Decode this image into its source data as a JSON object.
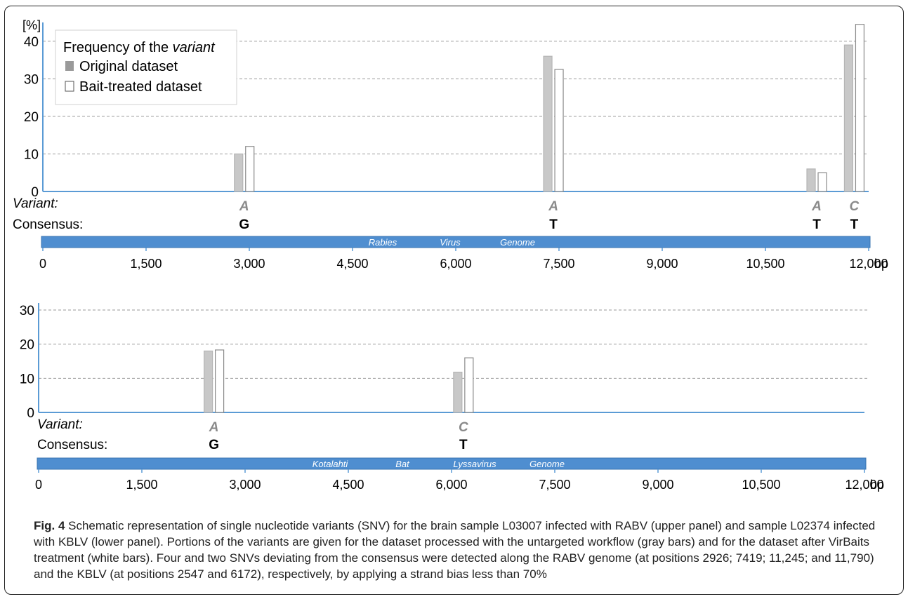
{
  "figure": {
    "caption_label": "Fig. 4",
    "caption_text": "Schematic representation of single nucleotide variants (SNV) for the brain sample L03007 infected with RABV (upper panel) and sample L02374 infected with KBLV (lower panel). Portions of the variants are given for the dataset processed with the untargeted workflow (gray bars) and for the dataset after VirBaits treatment (white bars). Four and two SNVs deviating from the consensus were detected along the RABV genome (at positions 2926; 7419; 11,245; and 11,790) and the KBLV (at positions 2547 and 6172), respectively, by applying a strand bias less than 70%"
  },
  "colors": {
    "original": "#c8c8c8",
    "bait": "#ffffff",
    "genome_bar": "#4f8ed0",
    "axis": "#5b9bd5",
    "grid": "#9a9a9a"
  },
  "chart_data": [
    {
      "type": "bar",
      "panel": "upper",
      "y_unit_label": "[%]",
      "ylim": [
        0,
        45
      ],
      "yticks": [
        "0",
        "10",
        "20",
        "30",
        "40"
      ],
      "grid": true,
      "legend": {
        "title_prefix": "Frequency of the ",
        "title_italic": "variant",
        "placement": "top-left",
        "entries": [
          "Original dataset",
          "Bait-treated dataset"
        ]
      },
      "x_positions_bp": [
        2926,
        7419,
        11245,
        11790
      ],
      "series": [
        {
          "name": "Original dataset",
          "values": [
            10,
            36,
            6,
            39
          ]
        },
        {
          "name": "Bait-treated dataset",
          "values": [
            12,
            32.5,
            5,
            44.5
          ]
        }
      ],
      "variant_row_label": "Variant:",
      "consensus_row_label": "Consensus:",
      "variants": [
        "A",
        "A",
        "A",
        "C"
      ],
      "consensus": [
        "G",
        "T",
        "T",
        "T"
      ],
      "genome_words": [
        "Rabies",
        "Virus",
        "Genome"
      ],
      "xlim": [
        0,
        12000
      ],
      "xticks": [
        "0",
        "1,500",
        "3,000",
        "4,500",
        "6,000",
        "7,500",
        "9,000",
        "10,500",
        "12,000"
      ],
      "x_unit": "bp"
    },
    {
      "type": "bar",
      "panel": "lower",
      "ylim": [
        0,
        30
      ],
      "yticks": [
        "0",
        "10",
        "20",
        "30"
      ],
      "grid": true,
      "x_positions_bp": [
        2547,
        6172
      ],
      "series": [
        {
          "name": "Original dataset",
          "values": [
            18,
            11.8
          ]
        },
        {
          "name": "Bait-treated dataset",
          "values": [
            18.3,
            16
          ]
        }
      ],
      "variant_row_label": "Variant:",
      "consensus_row_label": "Consensus:",
      "variants": [
        "A",
        "C"
      ],
      "consensus": [
        "G",
        "T"
      ],
      "genome_words": [
        "Kotalahti",
        "Bat",
        "Lyssavirus",
        "Genome"
      ],
      "xlim": [
        0,
        12000
      ],
      "xticks": [
        "0",
        "1,500",
        "3,000",
        "4,500",
        "6,000",
        "7,500",
        "9,000",
        "10,500",
        "12,000"
      ],
      "x_unit": "bp"
    }
  ]
}
